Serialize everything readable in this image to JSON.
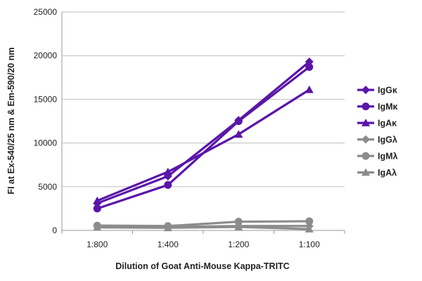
{
  "chart_data": {
    "type": "line",
    "title": "",
    "xlabel": "Dilution of Goat Anti-Mouse Kappa-TRITC",
    "ylabel": "FI at Ex-540/25 nm & Em-590/20 nm",
    "categories": [
      "1:800",
      "1:400",
      "1:200",
      "1:100"
    ],
    "ylim": [
      0,
      25000
    ],
    "yticks": [
      0,
      5000,
      10000,
      15000,
      20000,
      25000
    ],
    "grid": true,
    "legend_position": "right",
    "series": [
      {
        "name": "IgGκ",
        "values": [
          3100,
          6200,
          12600,
          19300
        ],
        "color": "#5a16a8",
        "marker": "diamond"
      },
      {
        "name": "IgMκ",
        "values": [
          2500,
          5200,
          12500,
          18700
        ],
        "color": "#5a16a8",
        "marker": "circle"
      },
      {
        "name": "IgAκ",
        "values": [
          3400,
          6700,
          11000,
          16100
        ],
        "color": "#5a16a8",
        "marker": "triangle"
      },
      {
        "name": "IgGλ",
        "values": [
          500,
          400,
          500,
          500
        ],
        "color": "#8c8c8c",
        "marker": "diamond"
      },
      {
        "name": "IgMλ",
        "values": [
          550,
          500,
          1000,
          1050
        ],
        "color": "#8c8c8c",
        "marker": "circle"
      },
      {
        "name": "IgAλ",
        "values": [
          350,
          300,
          400,
          150
        ],
        "color": "#8c8c8c",
        "marker": "triangle"
      }
    ]
  }
}
